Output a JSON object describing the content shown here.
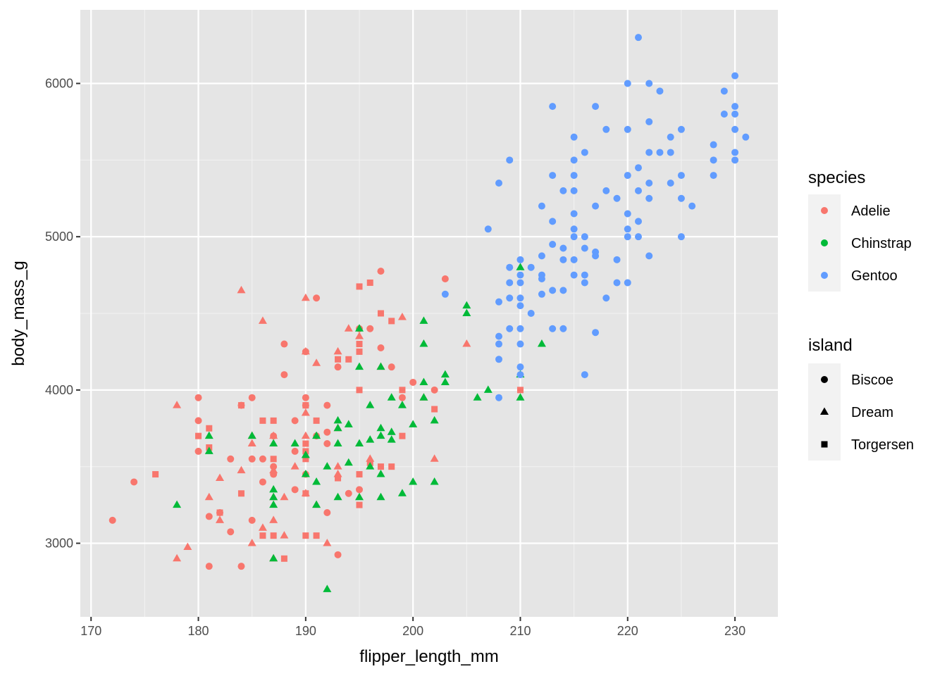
{
  "chart_data": {
    "type": "scatter",
    "xlabel": "flipper_length_mm",
    "ylabel": "body_mass_g",
    "xlim": [
      169,
      234
    ],
    "ylim": [
      2520,
      6480
    ],
    "x_ticks": [
      170,
      180,
      190,
      200,
      210,
      220,
      230
    ],
    "y_ticks": [
      3000,
      4000,
      5000,
      6000
    ],
    "grid": true,
    "background": "#E5E5E5",
    "legend_position": "right",
    "legends": [
      {
        "title": "species",
        "entries": [
          {
            "label": "Adelie",
            "color": "#F8766D"
          },
          {
            "label": "Chinstrap",
            "color": "#00BA38"
          },
          {
            "label": "Gentoo",
            "color": "#619CFF"
          }
        ]
      },
      {
        "title": "island",
        "entries": [
          {
            "label": "Biscoe",
            "shape": "circle"
          },
          {
            "label": "Dream",
            "shape": "triangle"
          },
          {
            "label": "Torgersen",
            "shape": "square"
          }
        ]
      }
    ],
    "encoding": {
      "color": "species",
      "shape": "island"
    },
    "series": [
      {
        "species": "Adelie",
        "island": "Biscoe",
        "points": [
          [
            172,
            3150
          ],
          [
            174,
            3400
          ],
          [
            180,
            3950
          ],
          [
            180,
            3800
          ],
          [
            180,
            3600
          ],
          [
            181,
            3175
          ],
          [
            181,
            2850
          ],
          [
            182,
            3200
          ],
          [
            183,
            3550
          ],
          [
            183,
            3075
          ],
          [
            184,
            3900
          ],
          [
            184,
            2850
          ],
          [
            185,
            3950
          ],
          [
            185,
            3550
          ],
          [
            185,
            3150
          ],
          [
            186,
            3550
          ],
          [
            186,
            3400
          ],
          [
            187,
            3700
          ],
          [
            187,
            3500
          ],
          [
            187,
            3450
          ],
          [
            188,
            4300
          ],
          [
            188,
            4100
          ],
          [
            189,
            3800
          ],
          [
            189,
            3600
          ],
          [
            189,
            3350
          ],
          [
            190,
            4250
          ],
          [
            190,
            3950
          ],
          [
            190,
            3900
          ],
          [
            190,
            3450
          ],
          [
            191,
            4600
          ],
          [
            191,
            3700
          ],
          [
            192,
            3900
          ],
          [
            192,
            3650
          ],
          [
            192,
            3725
          ],
          [
            192,
            3200
          ],
          [
            193,
            4150
          ],
          [
            193,
            2925
          ],
          [
            194,
            3325
          ],
          [
            195,
            4400
          ],
          [
            195,
            3350
          ],
          [
            196,
            4400
          ],
          [
            197,
            4775
          ],
          [
            197,
            4275
          ],
          [
            198,
            4150
          ],
          [
            199,
            3950
          ],
          [
            200,
            4050
          ],
          [
            202,
            4000
          ],
          [
            203,
            4725
          ]
        ]
      },
      {
        "species": "Adelie",
        "island": "Dream",
        "points": [
          [
            178,
            3900
          ],
          [
            178,
            2900
          ],
          [
            179,
            2975
          ],
          [
            181,
            3300
          ],
          [
            182,
            3425
          ],
          [
            182,
            3150
          ],
          [
            184,
            4650
          ],
          [
            184,
            3475
          ],
          [
            185,
            3000
          ],
          [
            185,
            3700
          ],
          [
            185,
            3650
          ],
          [
            186,
            4450
          ],
          [
            186,
            3100
          ],
          [
            187,
            3700
          ],
          [
            187,
            3475
          ],
          [
            187,
            3300
          ],
          [
            187,
            3150
          ],
          [
            187,
            2900
          ],
          [
            188,
            3300
          ],
          [
            188,
            3050
          ],
          [
            189,
            3500
          ],
          [
            190,
            4600
          ],
          [
            190,
            4250
          ],
          [
            190,
            3850
          ],
          [
            190,
            3325
          ],
          [
            190,
            3700
          ],
          [
            191,
            4175
          ],
          [
            191,
            3250
          ],
          [
            192,
            3000
          ],
          [
            193,
            4250
          ],
          [
            193,
            3750
          ],
          [
            193,
            3500
          ],
          [
            193,
            3450
          ],
          [
            194,
            4400
          ],
          [
            195,
            4350
          ],
          [
            196,
            3550
          ],
          [
            197,
            4150
          ],
          [
            199,
            4475
          ],
          [
            201,
            3950
          ],
          [
            202,
            3550
          ],
          [
            205,
            4300
          ]
        ]
      },
      {
        "species": "Adelie",
        "island": "Torgersen",
        "points": [
          [
            176,
            3450
          ],
          [
            180,
            3700
          ],
          [
            181,
            3750
          ],
          [
            181,
            3625
          ],
          [
            182,
            3200
          ],
          [
            184,
            3325
          ],
          [
            184,
            3900
          ],
          [
            186,
            3800
          ],
          [
            186,
            3050
          ],
          [
            187,
            3800
          ],
          [
            187,
            3550
          ],
          [
            187,
            3050
          ],
          [
            188,
            2900
          ],
          [
            190,
            3900
          ],
          [
            190,
            3650
          ],
          [
            190,
            3600
          ],
          [
            190,
            3550
          ],
          [
            190,
            3325
          ],
          [
            190,
            3050
          ],
          [
            191,
            3800
          ],
          [
            191,
            3050
          ],
          [
            193,
            4200
          ],
          [
            193,
            3425
          ],
          [
            194,
            4200
          ],
          [
            195,
            4675
          ],
          [
            195,
            4300
          ],
          [
            195,
            4250
          ],
          [
            195,
            3450
          ],
          [
            195,
            3250
          ],
          [
            195,
            4000
          ],
          [
            196,
            4700
          ],
          [
            196,
            3525
          ],
          [
            197,
            4500
          ],
          [
            197,
            3500
          ],
          [
            198,
            4450
          ],
          [
            198,
            3500
          ],
          [
            199,
            3700
          ],
          [
            199,
            4000
          ],
          [
            202,
            3875
          ],
          [
            210,
            4000
          ]
        ]
      },
      {
        "species": "Chinstrap",
        "island": "Dream",
        "points": [
          [
            178,
            3250
          ],
          [
            181,
            3700
          ],
          [
            181,
            3600
          ],
          [
            185,
            3700
          ],
          [
            187,
            3650
          ],
          [
            187,
            3350
          ],
          [
            187,
            3300
          ],
          [
            187,
            3250
          ],
          [
            187,
            2900
          ],
          [
            189,
            3650
          ],
          [
            190,
            3450
          ],
          [
            190,
            3575
          ],
          [
            191,
            3700
          ],
          [
            191,
            3400
          ],
          [
            191,
            3250
          ],
          [
            192,
            3500
          ],
          [
            192,
            2700
          ],
          [
            193,
            3800
          ],
          [
            193,
            3750
          ],
          [
            193,
            3650
          ],
          [
            193,
            3300
          ],
          [
            194,
            3775
          ],
          [
            194,
            3525
          ],
          [
            195,
            4400
          ],
          [
            195,
            4150
          ],
          [
            195,
            3650
          ],
          [
            195,
            3300
          ],
          [
            196,
            3900
          ],
          [
            196,
            3675
          ],
          [
            196,
            3500
          ],
          [
            197,
            4150
          ],
          [
            197,
            3750
          ],
          [
            197,
            3700
          ],
          [
            197,
            3450
          ],
          [
            197,
            3300
          ],
          [
            198,
            3950
          ],
          [
            198,
            3725
          ],
          [
            198,
            3675
          ],
          [
            199,
            3900
          ],
          [
            199,
            3325
          ],
          [
            200,
            3775
          ],
          [
            200,
            3400
          ],
          [
            201,
            4450
          ],
          [
            201,
            4300
          ],
          [
            201,
            4050
          ],
          [
            201,
            3950
          ],
          [
            202,
            3800
          ],
          [
            202,
            3400
          ],
          [
            203,
            4100
          ],
          [
            203,
            4050
          ],
          [
            205,
            4550
          ],
          [
            205,
            4500
          ],
          [
            206,
            3950
          ],
          [
            207,
            4000
          ],
          [
            210,
            4800
          ],
          [
            210,
            4100
          ],
          [
            210,
            3950
          ],
          [
            212,
            4300
          ]
        ]
      },
      {
        "species": "Gentoo",
        "island": "Biscoe",
        "points": [
          [
            203,
            4625
          ],
          [
            207,
            5050
          ],
          [
            208,
            5350
          ],
          [
            208,
            4575
          ],
          [
            208,
            4350
          ],
          [
            208,
            4300
          ],
          [
            208,
            4200
          ],
          [
            208,
            3950
          ],
          [
            209,
            5500
          ],
          [
            209,
            4800
          ],
          [
            209,
            4700
          ],
          [
            209,
            4600
          ],
          [
            209,
            4400
          ],
          [
            210,
            4850
          ],
          [
            210,
            4750
          ],
          [
            210,
            4700
          ],
          [
            210,
            4600
          ],
          [
            210,
            4550
          ],
          [
            210,
            4400
          ],
          [
            210,
            4300
          ],
          [
            210,
            4150
          ],
          [
            210,
            4100
          ],
          [
            211,
            4800
          ],
          [
            211,
            4500
          ],
          [
            212,
            5200
          ],
          [
            212,
            4875
          ],
          [
            212,
            4750
          ],
          [
            212,
            4725
          ],
          [
            212,
            4625
          ],
          [
            213,
            5850
          ],
          [
            213,
            5400
          ],
          [
            213,
            5100
          ],
          [
            213,
            4950
          ],
          [
            213,
            4650
          ],
          [
            213,
            4400
          ],
          [
            214,
            5300
          ],
          [
            214,
            4925
          ],
          [
            214,
            4850
          ],
          [
            214,
            4650
          ],
          [
            214,
            4400
          ],
          [
            215,
            5650
          ],
          [
            215,
            5500
          ],
          [
            215,
            5400
          ],
          [
            215,
            5300
          ],
          [
            215,
            5150
          ],
          [
            215,
            5050
          ],
          [
            215,
            5000
          ],
          [
            215,
            4850
          ],
          [
            215,
            4750
          ],
          [
            216,
            5550
          ],
          [
            216,
            5000
          ],
          [
            216,
            4925
          ],
          [
            216,
            4750
          ],
          [
            216,
            4700
          ],
          [
            216,
            4100
          ],
          [
            217,
            5850
          ],
          [
            217,
            5200
          ],
          [
            217,
            4900
          ],
          [
            217,
            4875
          ],
          [
            217,
            4375
          ],
          [
            218,
            5700
          ],
          [
            218,
            5300
          ],
          [
            218,
            4600
          ],
          [
            219,
            5250
          ],
          [
            219,
            4850
          ],
          [
            219,
            4700
          ],
          [
            220,
            5700
          ],
          [
            220,
            5400
          ],
          [
            220,
            5150
          ],
          [
            220,
            5050
          ],
          [
            220,
            5000
          ],
          [
            220,
            4700
          ],
          [
            220,
            6000
          ],
          [
            221,
            6300
          ],
          [
            221,
            5450
          ],
          [
            221,
            5300
          ],
          [
            221,
            5100
          ],
          [
            221,
            5000
          ],
          [
            222,
            6000
          ],
          [
            222,
            5750
          ],
          [
            222,
            5550
          ],
          [
            222,
            5350
          ],
          [
            222,
            5250
          ],
          [
            222,
            4875
          ],
          [
            223,
            5950
          ],
          [
            223,
            5550
          ],
          [
            224,
            5650
          ],
          [
            224,
            5550
          ],
          [
            224,
            5350
          ],
          [
            225,
            5700
          ],
          [
            225,
            5400
          ],
          [
            225,
            5250
          ],
          [
            225,
            5000
          ],
          [
            226,
            5200
          ],
          [
            228,
            5600
          ],
          [
            228,
            5500
          ],
          [
            228,
            5400
          ],
          [
            229,
            5950
          ],
          [
            229,
            5800
          ],
          [
            230,
            6050
          ],
          [
            230,
            5850
          ],
          [
            230,
            5800
          ],
          [
            230,
            5700
          ],
          [
            230,
            5550
          ],
          [
            230,
            5500
          ],
          [
            231,
            5650
          ]
        ]
      }
    ]
  }
}
